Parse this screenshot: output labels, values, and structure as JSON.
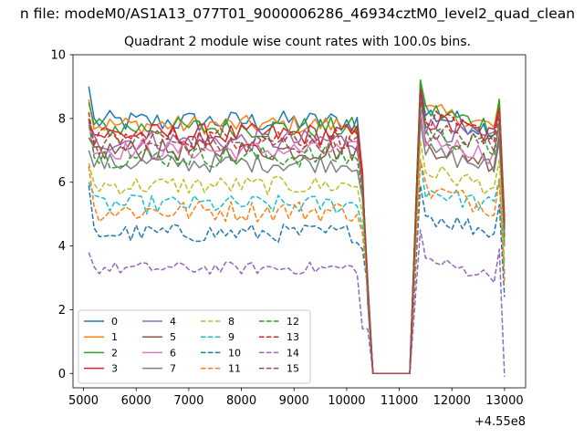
{
  "chart_data": {
    "type": "line",
    "suptitle": "n file: modeM0/AS1A13_077T01_9000006286_46934cztM0_level2_quad_clean",
    "title": "Quadrant 2 module wise count rates with 100.0s bins.",
    "xlabel": "",
    "ylabel": "",
    "x_offset_label": "+4.55e8",
    "xlim": [
      4800,
      13400
    ],
    "ylim": [
      -0.45,
      10.0
    ],
    "x_ticks": [
      5000,
      6000,
      7000,
      8000,
      9000,
      10000,
      11000,
      12000,
      13000
    ],
    "x_tick_labels": [
      "5000",
      "6000",
      "7000",
      "8000",
      "9000",
      "10000",
      "11000",
      "12000",
      "13000"
    ],
    "y_ticks": [
      0,
      2,
      4,
      6,
      8,
      10
    ],
    "y_tick_labels": [
      "0",
      "2",
      "4",
      "6",
      "8",
      "10"
    ],
    "grid": false,
    "legend_position": "lower-left",
    "legend_columns": 4,
    "time_segments": [
      {
        "start": 5100,
        "end": 10300,
        "step": 100
      },
      {
        "start": 11400,
        "end": 13000,
        "step": 100
      }
    ],
    "gap_points": {
      "x": [
        10400,
        10500,
        11200
      ],
      "y": [
        2.5,
        0,
        0
      ]
    },
    "series": [
      {
        "name": "0",
        "color": "#1f77b4",
        "dash": "solid",
        "mean1": 7.9,
        "mean2": 8.2,
        "amp": 0.35,
        "start": 9.0,
        "end_dip": 6.3
      },
      {
        "name": "1",
        "color": "#ff7f0e",
        "dash": "solid",
        "mean1": 7.8,
        "mean2": 8.3,
        "amp": 0.3,
        "start": 8.6,
        "end_dip": 6.4
      },
      {
        "name": "2",
        "color": "#2ca02c",
        "dash": "solid",
        "mean1": 7.7,
        "mean2": 8.3,
        "amp": 0.35,
        "start": 8.5,
        "end_dip": 6.0
      },
      {
        "name": "3",
        "color": "#d62728",
        "dash": "solid",
        "mean1": 7.5,
        "mean2": 8.0,
        "amp": 0.35,
        "start": 7.9,
        "end_dip": 6.3
      },
      {
        "name": "4",
        "color": "#9467bd",
        "dash": "solid",
        "mean1": 7.3,
        "mean2": 7.8,
        "amp": 0.35,
        "start": 7.7,
        "end_dip": 6.1
      },
      {
        "name": "5",
        "color": "#8c564b",
        "dash": "solid",
        "mean1": 7.0,
        "mean2": 7.2,
        "amp": 0.35,
        "start": 7.4,
        "end_dip": 5.8
      },
      {
        "name": "6",
        "color": "#e377c2",
        "dash": "solid",
        "mean1": 7.0,
        "mean2": 7.4,
        "amp": 0.3,
        "start": 7.8,
        "end_dip": 5.9
      },
      {
        "name": "7",
        "color": "#7f7f7f",
        "dash": "solid",
        "mean1": 6.6,
        "mean2": 7.0,
        "amp": 0.3,
        "start": 7.0,
        "end_dip": 5.5
      },
      {
        "name": "8",
        "color": "#bcbd22",
        "dash": "dashed",
        "mean1": 5.9,
        "mean2": 6.4,
        "amp": 0.3,
        "start": 6.6,
        "end_dip": 5.0
      },
      {
        "name": "9",
        "color": "#17becf",
        "dash": "dashed",
        "mean1": 5.3,
        "mean2": 5.8,
        "amp": 0.3,
        "start": 6.0,
        "end_dip": 4.6
      },
      {
        "name": "10",
        "color": "#1f77b4",
        "dash": "dashed",
        "mean1": 4.4,
        "mean2": 5.0,
        "amp": 0.3,
        "start": 5.9,
        "end_dip": 3.9
      },
      {
        "name": "11",
        "color": "#ff7f0e",
        "dash": "dashed",
        "mean1": 5.1,
        "mean2": 5.8,
        "amp": 0.35,
        "start": 6.5,
        "end_dip": 4.4
      },
      {
        "name": "12",
        "color": "#2ca02c",
        "dash": "dashed",
        "mean1": 6.8,
        "mean2": 7.6,
        "amp": 0.35,
        "start": 8.0,
        "end_dip": 5.7
      },
      {
        "name": "13",
        "color": "#d62728",
        "dash": "dashed",
        "mean1": 7.4,
        "mean2": 8.0,
        "amp": 0.35,
        "start": 8.2,
        "end_dip": 6.2
      },
      {
        "name": "14",
        "color": "#9467bd",
        "dash": "dashed",
        "mean1": 3.3,
        "mean2": 3.6,
        "amp": 0.2,
        "start": 3.8,
        "end_dip": 1.4
      },
      {
        "name": "15",
        "color": "#8c564b",
        "dash": "dashed",
        "mean1": 7.2,
        "mean2": 7.7,
        "amp": 0.35,
        "start": 8.0,
        "end_dip": 6.0
      }
    ]
  }
}
